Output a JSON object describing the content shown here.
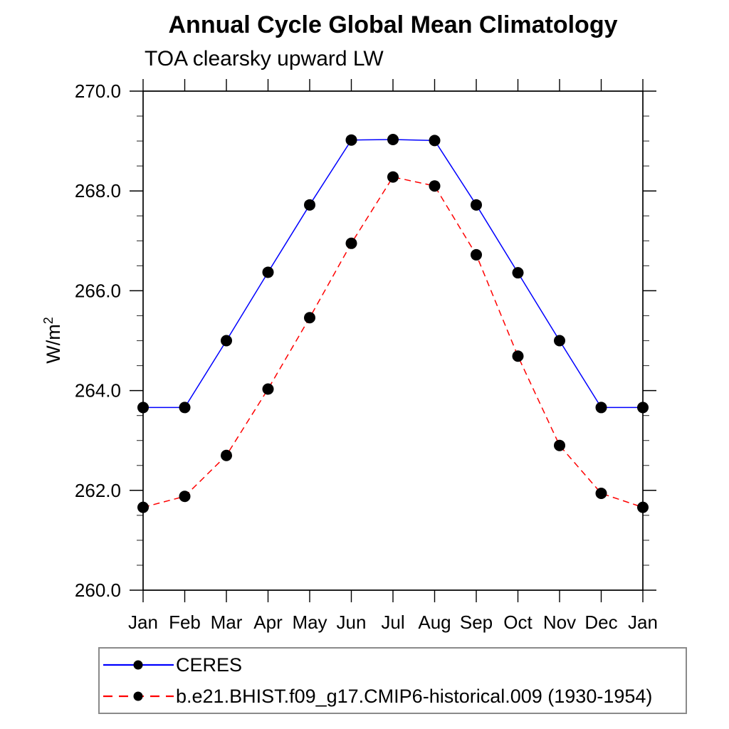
{
  "header": {
    "title": "Annual Cycle Global Mean Climatology",
    "subtitle": "TOA clearsky upward LW"
  },
  "chart_data": {
    "type": "line",
    "title": "Annual Cycle Global Mean Climatology",
    "subtitle": "TOA clearsky upward LW",
    "ylabel": "W/m²",
    "ylabel_base": "W/m",
    "ylabel_exponent": "2",
    "xlabel": "",
    "categories": [
      "Jan",
      "Feb",
      "Mar",
      "Apr",
      "May",
      "Jun",
      "Jul",
      "Aug",
      "Sep",
      "Oct",
      "Nov",
      "Dec",
      "Jan"
    ],
    "series": [
      {
        "name": "CERES",
        "color": "#0000ff",
        "line_style": "solid",
        "marker": "black-dot",
        "values": [
          263.66,
          263.66,
          265.0,
          266.37,
          267.72,
          269.02,
          269.03,
          269.01,
          267.72,
          266.36,
          265.0,
          263.66,
          263.66
        ]
      },
      {
        "name": "b.e21.BHIST.f09_g17.CMIP6-historical.009 (1930-1954)",
        "color": "#ff0000",
        "line_style": "dashed",
        "marker": "black-dot",
        "values": [
          261.66,
          261.88,
          262.7,
          264.03,
          265.46,
          266.95,
          268.28,
          268.1,
          266.72,
          264.69,
          262.9,
          261.94,
          261.66
        ]
      }
    ],
    "ylim": [
      260.0,
      270.0
    ],
    "yticks": [
      260.0,
      262.0,
      264.0,
      266.0,
      268.0,
      270.0
    ],
    "ytick_labels": [
      "260.0",
      "262.0",
      "264.0",
      "266.0",
      "268.0",
      "270.0"
    ],
    "minor_tick_interval": 0.5,
    "grid": false,
    "legend_position": "bottom-left",
    "colors": {
      "axis": "#000000",
      "minor_tick": "#444444",
      "marker": "#000000",
      "text": "#000000"
    }
  }
}
